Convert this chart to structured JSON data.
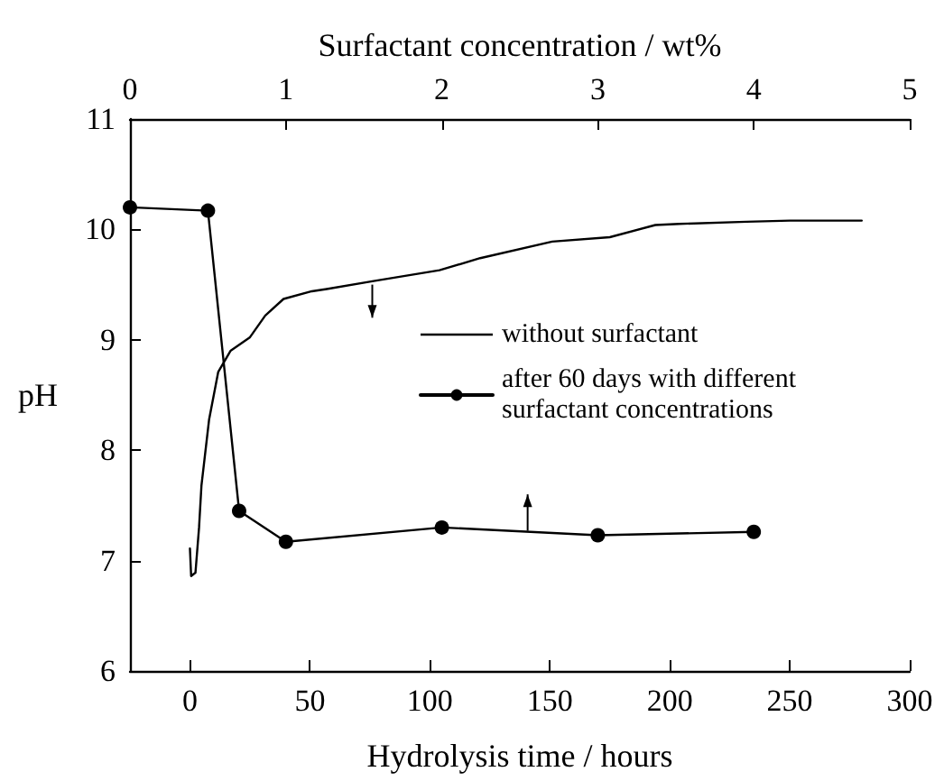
{
  "chart_data": {
    "type": "line",
    "xlabel": "Hydrolysis time / hours",
    "x2label": "Surfactant concentration / wt%",
    "ylabel": "pH",
    "xlim": [
      -25,
      300
    ],
    "xticks": [
      0,
      50,
      100,
      150,
      200,
      250,
      300
    ],
    "x2lim": [
      0,
      5
    ],
    "x2ticks": [
      0,
      1,
      2,
      3,
      4,
      5
    ],
    "ylim": [
      6,
      11
    ],
    "yticks": [
      6,
      7,
      8,
      9,
      10,
      11
    ],
    "grid": false,
    "legend": "right",
    "series": [
      {
        "name": "without surfactant",
        "color": "#000000",
        "marker": "none",
        "x": [
          0,
          0.5,
          2.3,
          3.8,
          4.8,
          8,
          11.8,
          16.9,
          24.9,
          31.4,
          39,
          50.8,
          57,
          76,
          104,
          121,
          151,
          175,
          194,
          204,
          232,
          250,
          280
        ],
        "values": [
          7.11,
          6.86,
          6.89,
          7.3,
          7.68,
          8.28,
          8.71,
          8.9,
          9.02,
          9.22,
          9.37,
          9.44,
          9.46,
          9.53,
          9.63,
          9.74,
          9.89,
          9.93,
          10.04,
          10.05,
          10.07,
          10.08,
          10.08
        ]
      },
      {
        "name": "after 60 days with different surfactant concentrations",
        "color": "#000000",
        "marker": "circle",
        "axis": "x2",
        "x": [
          0,
          0.5,
          0.7,
          1,
          2,
          3,
          4
        ],
        "values": [
          10.2,
          10.17,
          7.45,
          7.17,
          7.3,
          7.23,
          7.26
        ]
      }
    ]
  }
}
